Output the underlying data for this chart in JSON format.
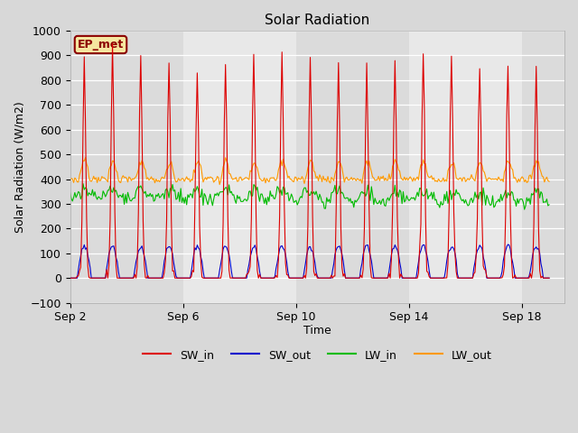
{
  "title": "Solar Radiation",
  "ylabel": "Solar Radiation (W/m2)",
  "xlabel": "Time",
  "ylim": [
    -100,
    1000
  ],
  "fig_bg": "#d8d8d8",
  "plot_bg": "#e8e8e8",
  "grid_color": "#ffffff",
  "label_box_text": "EP_met",
  "label_box_bg": "#f5e6a0",
  "label_box_border": "#8b0000",
  "series": {
    "SW_in": {
      "color": "#dd0000",
      "lw": 0.8
    },
    "SW_out": {
      "color": "#0000cc",
      "lw": 0.8
    },
    "LW_in": {
      "color": "#00bb00",
      "lw": 0.8
    },
    "LW_out": {
      "color": "#ff9900",
      "lw": 0.8
    }
  },
  "xtick_labels": [
    "Sep 2",
    "Sep 6",
    "Sep 10",
    "Sep 14",
    "Sep 18"
  ],
  "yticks": [
    -100,
    0,
    100,
    200,
    300,
    400,
    500,
    600,
    700,
    800,
    900,
    1000
  ]
}
